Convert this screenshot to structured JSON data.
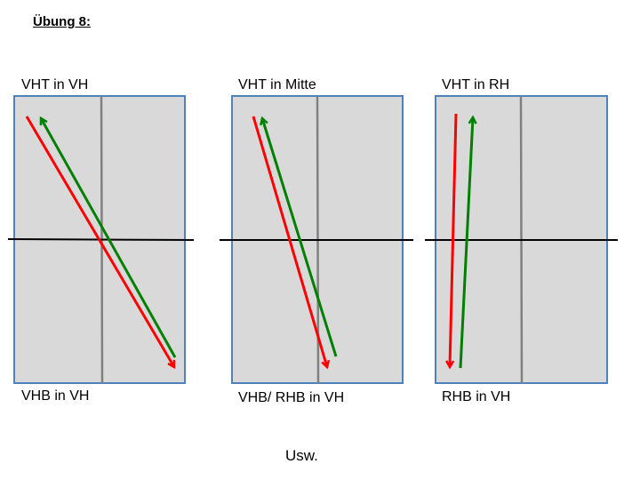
{
  "title": "Übung 8:",
  "colors": {
    "panel_fill": "#d9d9d9",
    "panel_border": "#4f81bd",
    "divider": "#808080",
    "axis": "#000000",
    "red_arrow": "#ff0000",
    "green_arrow": "#008000"
  },
  "panels": [
    {
      "top_label": "VHT in VH",
      "bottom_label": "VHB in VH"
    },
    {
      "top_label": "VHT in Mitte",
      "bottom_label": "VHB/ RHB in VH"
    },
    {
      "top_label": "VHT in RH",
      "bottom_label": "RHB in VH"
    }
  ],
  "footer": "Usw."
}
